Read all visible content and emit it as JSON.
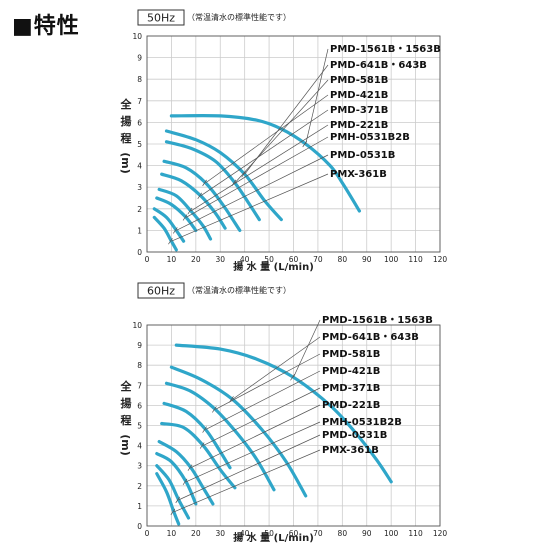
{
  "heading": "■特性",
  "chart_data": [
    {
      "type": "line",
      "title": "50Hz",
      "subtitle": "（常温清水の標準性能です）",
      "ylabel": "全揚程",
      "yunit": "(m)",
      "xlabel": "揚 水 量 (L/min)",
      "xlim": [
        0,
        120
      ],
      "ylim": [
        0,
        10
      ],
      "xticks": [
        0,
        10,
        20,
        30,
        40,
        50,
        60,
        70,
        80,
        90,
        100,
        110,
        120
      ],
      "yticks": [
        0,
        1,
        2,
        3,
        4,
        5,
        6,
        7,
        8,
        9,
        10
      ],
      "grid": true,
      "series": [
        {
          "name": "PMD-1561B・1563B",
          "x": [
            10,
            30,
            45,
            55,
            65,
            75,
            80,
            87
          ],
          "y": [
            6.3,
            6.3,
            6.1,
            5.7,
            5.0,
            4.0,
            3.2,
            1.9
          ]
        },
        {
          "name": "PMD-641B・643B",
          "x": [
            8,
            20,
            30,
            40,
            48,
            55
          ],
          "y": [
            5.6,
            5.2,
            4.6,
            3.6,
            2.4,
            1.5
          ]
        },
        {
          "name": "PMD-581B",
          "x": [
            8,
            18,
            28,
            36,
            42,
            46
          ],
          "y": [
            5.1,
            4.8,
            4.2,
            3.2,
            2.2,
            1.5
          ]
        },
        {
          "name": "PMD-421B",
          "x": [
            7,
            16,
            24,
            31,
            38
          ],
          "y": [
            4.2,
            3.9,
            3.2,
            2.2,
            1.0
          ]
        },
        {
          "name": "PMD-371B",
          "x": [
            6,
            14,
            22,
            28,
            32
          ],
          "y": [
            3.6,
            3.3,
            2.6,
            1.8,
            1.1
          ]
        },
        {
          "name": "PMD-221B",
          "x": [
            5,
            12,
            18,
            23,
            26
          ],
          "y": [
            2.9,
            2.6,
            1.9,
            1.2,
            0.6
          ]
        },
        {
          "name": "PMH-0531B2B",
          "x": [
            4,
            10,
            16,
            20
          ],
          "y": [
            2.5,
            2.2,
            1.6,
            1.0
          ]
        },
        {
          "name": "PMD-0531B",
          "x": [
            3,
            8,
            12,
            15
          ],
          "y": [
            2.0,
            1.6,
            1.0,
            0.5
          ]
        },
        {
          "name": "PMX-361B",
          "x": [
            3,
            7,
            10,
            12
          ],
          "y": [
            1.6,
            1.1,
            0.5,
            0.1
          ]
        }
      ]
    },
    {
      "type": "line",
      "title": "60Hz",
      "subtitle": "（常温清水の標準性能です）",
      "ylabel": "全揚程",
      "yunit": "(m)",
      "xlabel": "揚 水 量 (L/min)",
      "xlim": [
        0,
        120
      ],
      "ylim": [
        0,
        10
      ],
      "xticks": [
        0,
        10,
        20,
        30,
        40,
        50,
        60,
        70,
        80,
        90,
        100,
        110,
        120
      ],
      "yticks": [
        0,
        1,
        2,
        3,
        4,
        5,
        6,
        7,
        8,
        9,
        10
      ],
      "grid": true,
      "series": [
        {
          "name": "PMD-1561B・1563B",
          "x": [
            12,
            30,
            45,
            60,
            75,
            85,
            94,
            100
          ],
          "y": [
            9.0,
            8.8,
            8.3,
            7.4,
            6.0,
            4.7,
            3.3,
            2.2
          ]
        },
        {
          "name": "PMD-641B・643B",
          "x": [
            10,
            22,
            35,
            47,
            57,
            65
          ],
          "y": [
            7.9,
            7.3,
            6.3,
            4.8,
            3.2,
            1.5
          ]
        },
        {
          "name": "PMD-581B",
          "x": [
            8,
            18,
            28,
            37,
            45,
            52
          ],
          "y": [
            7.1,
            6.7,
            5.8,
            4.6,
            3.3,
            1.8
          ]
        },
        {
          "name": "PMD-421B",
          "x": [
            7,
            16,
            24,
            30,
            34
          ],
          "y": [
            6.1,
            5.7,
            4.8,
            3.7,
            2.9
          ]
        },
        {
          "name": "PMD-371B",
          "x": [
            6,
            15,
            23,
            30,
            36
          ],
          "y": [
            5.1,
            4.9,
            4.0,
            2.8,
            1.9
          ]
        },
        {
          "name": "PMD-221B",
          "x": [
            5,
            12,
            18,
            23,
            27
          ],
          "y": [
            4.2,
            3.7,
            2.9,
            1.9,
            1.1
          ]
        },
        {
          "name": "PMH-0531B2B",
          "x": [
            4,
            10,
            16,
            20
          ],
          "y": [
            3.6,
            3.2,
            2.2,
            1.1
          ]
        },
        {
          "name": "PMD-0531B",
          "x": [
            4,
            9,
            13,
            17
          ],
          "y": [
            3.0,
            2.3,
            1.3,
            0.4
          ]
        },
        {
          "name": "PMX-361B",
          "x": [
            4,
            8,
            11,
            13
          ],
          "y": [
            2.6,
            1.7,
            0.7,
            0.1
          ]
        }
      ]
    }
  ]
}
